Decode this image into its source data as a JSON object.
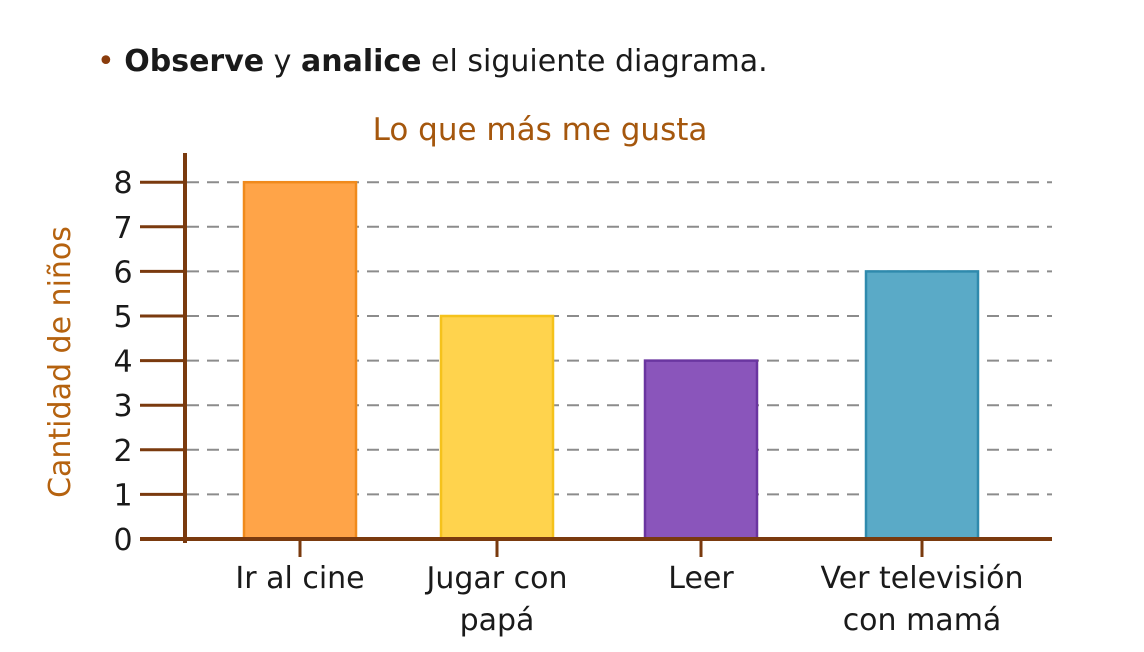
{
  "instruction": {
    "bullet": "•",
    "part1_bold": "Observe",
    "part2": " y ",
    "part3_bold": "analice",
    "part4": " el siguiente diagrama."
  },
  "chart_data": {
    "type": "bar",
    "title": "Lo que más me gusta",
    "xlabel": "",
    "ylabel": "Cantidad de niños",
    "ylim": [
      0,
      8
    ],
    "yticks": [
      0,
      1,
      2,
      3,
      4,
      5,
      6,
      7,
      8
    ],
    "grid": true,
    "categories": [
      [
        "Ir al cine"
      ],
      [
        "Jugar con",
        "papá"
      ],
      [
        "Leer"
      ],
      [
        "Ver televisión",
        "con mamá"
      ]
    ],
    "values": [
      8,
      5,
      4,
      6
    ],
    "colors": [
      "#ffa448",
      "#ffd34d",
      "#8a55bb",
      "#5aaac7"
    ],
    "stroke_colors": [
      "#f08a1c",
      "#f5c21b",
      "#6a35a0",
      "#2f8aad"
    ],
    "axis_color": "#7a3a0e",
    "title_color": "#a5570d",
    "ylabel_color": "#b5620f"
  }
}
